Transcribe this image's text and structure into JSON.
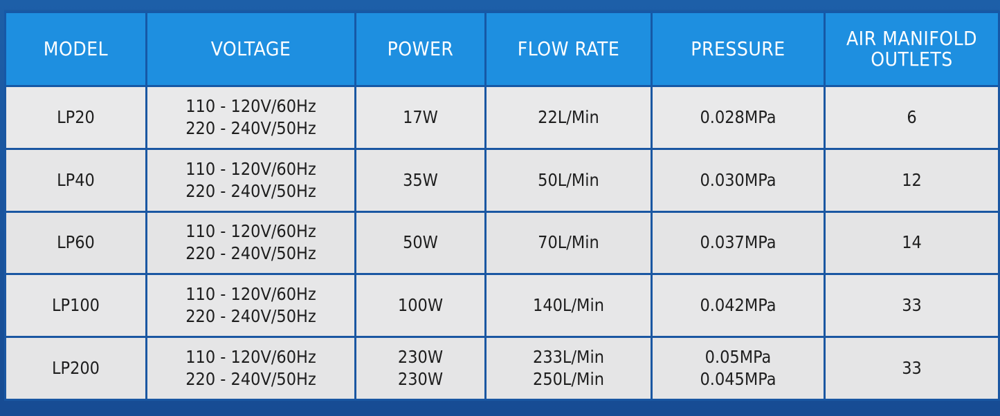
{
  "table": {
    "headers": [
      [
        "MODEL"
      ],
      [
        "VOLTAGE"
      ],
      [
        "POWER"
      ],
      [
        "FLOW RATE"
      ],
      [
        "PRESSURE"
      ],
      [
        "AIR MANIFOLD",
        "OUTLETS"
      ]
    ],
    "rows": [
      {
        "model": [
          "LP20"
        ],
        "voltage": [
          "110 - 120V/60Hz",
          "220 - 240V/50Hz"
        ],
        "power": [
          "17W"
        ],
        "flow_rate": [
          "22L/Min"
        ],
        "pressure": [
          "0.028MPa"
        ],
        "outlets": [
          "6"
        ]
      },
      {
        "model": [
          "LP40"
        ],
        "voltage": [
          "110 - 120V/60Hz",
          "220 - 240V/50Hz"
        ],
        "power": [
          "35W"
        ],
        "flow_rate": [
          "50L/Min"
        ],
        "pressure": [
          "0.030MPa"
        ],
        "outlets": [
          "12"
        ]
      },
      {
        "model": [
          "LP60"
        ],
        "voltage": [
          "110 - 120V/60Hz",
          "220 - 240V/50Hz"
        ],
        "power": [
          "50W"
        ],
        "flow_rate": [
          "70L/Min"
        ],
        "pressure": [
          "0.037MPa"
        ],
        "outlets": [
          "14"
        ]
      },
      {
        "model": [
          "LP100"
        ],
        "voltage": [
          "110 - 120V/60Hz",
          "220 - 240V/50Hz"
        ],
        "power": [
          "100W"
        ],
        "flow_rate": [
          "140L/Min"
        ],
        "pressure": [
          "0.042MPa"
        ],
        "outlets": [
          "33"
        ]
      },
      {
        "model": [
          "LP200"
        ],
        "voltage": [
          "110 - 120V/60Hz",
          "220 - 240V/50Hz"
        ],
        "power": [
          "230W",
          "230W"
        ],
        "flow_rate": [
          "233L/Min",
          "250L/Min"
        ],
        "pressure": [
          "0.05MPa",
          "0.045MPa"
        ],
        "outlets": [
          "33"
        ]
      }
    ]
  },
  "colors": {
    "background_blue": "#1a56a0",
    "header_blue": "#1e8fe0",
    "cell_gray": "#e9e9ea",
    "header_text": "#ffffff",
    "cell_text": "#1e1e1e"
  }
}
